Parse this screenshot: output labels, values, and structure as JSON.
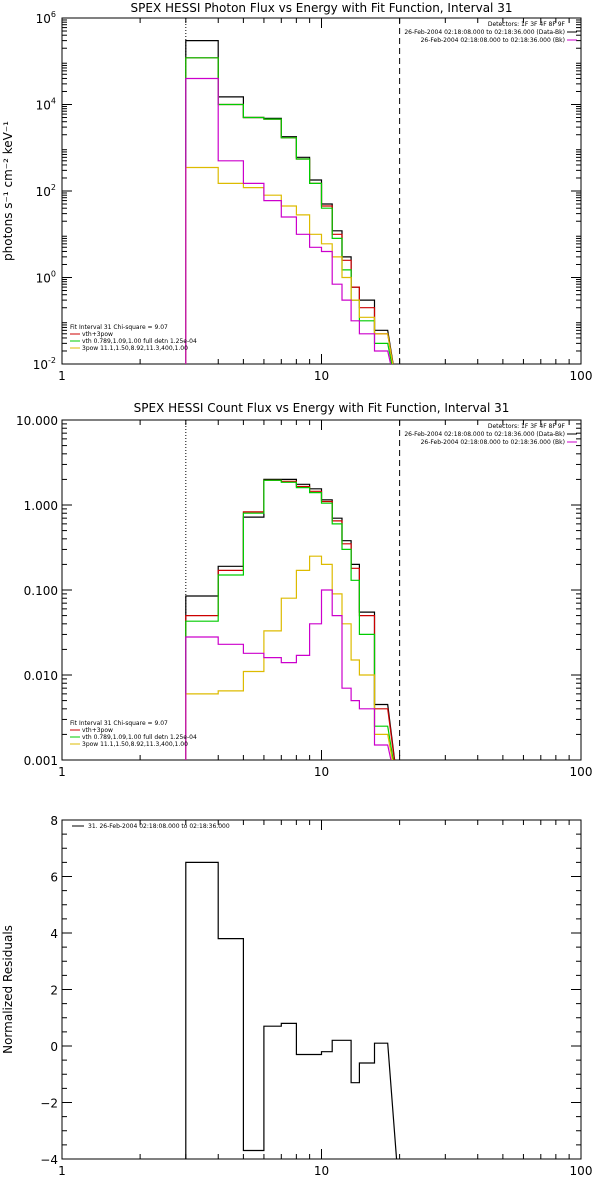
{
  "chart_data": [
    {
      "type": "line",
      "title": "SPEX HESSI Photon Flux vs Energy with Fit Function, Interval 31",
      "ylabel": "photons s⁻¹ cm⁻² keV⁻¹",
      "xscale": "log",
      "yscale": "log",
      "xlim": [
        1,
        100
      ],
      "ylim": [
        0.01,
        1000000
      ],
      "x_ticks": [
        "1",
        "10",
        "100"
      ],
      "y_ticks": [
        {
          "v": 1000000,
          "b": "10",
          "e": "6"
        },
        {
          "v": 10000,
          "b": "10",
          "e": "4"
        },
        {
          "v": 100,
          "b": "10",
          "e": "2"
        },
        {
          "v": 1,
          "b": "10",
          "e": "0"
        },
        {
          "v": 0.01,
          "b": "10",
          "e": "-2"
        }
      ],
      "legend_top": [
        "Detectors: 1F 3F 4F 8F 9F",
        "26-Feb-2004 02:18:08.000 to 02:18:36.000 (Data-Bk)",
        "26-Feb-2004 02:18:08.000 to 02:18:36.000 (Bk)"
      ],
      "legend_top_colors": [
        "",
        "#000000",
        "#cc00cc"
      ],
      "legend_bottom": [
        "Fit Interval 31    Chi-square = 9.07",
        "vth+3pow",
        "vth 0.789,1.09,1.00  full detn 1.25e-04",
        "3pow 11.1,1.50,8.92,11.3,400,1.00"
      ],
      "legend_bottom_colors": [
        "",
        "#cc0000",
        "#00cc00",
        "#ddbb00"
      ],
      "vlines": [
        {
          "x": 3,
          "style": "dotted"
        },
        {
          "x": 20,
          "style": "dashed"
        }
      ],
      "edges": [
        3,
        4,
        5,
        6,
        7,
        8,
        9,
        10,
        11,
        12,
        13,
        14,
        16,
        18,
        20
      ],
      "series": [
        {
          "name": "Data-Bk",
          "color": "#000000",
          "values": [
            300000,
            15000,
            5000,
            4800,
            1800,
            600,
            180,
            50,
            12,
            3,
            0.6,
            0.3,
            0.06
          ]
        },
        {
          "name": "vth+3pow",
          "color": "#cc0000",
          "values": [
            120000,
            10000,
            5000,
            4600,
            1700,
            550,
            150,
            45,
            10,
            2.5,
            0.6,
            0.2,
            0.05
          ]
        },
        {
          "name": "vth",
          "color": "#00cc00",
          "values": [
            120000,
            10000,
            5000,
            4600,
            1700,
            550,
            150,
            40,
            8,
            1.5,
            0.3,
            0.1,
            0.03
          ]
        },
        {
          "name": "3pow",
          "color": "#ddbb00",
          "values": [
            350,
            150,
            120,
            80,
            45,
            28,
            10,
            6,
            3,
            1,
            0.3,
            0.12,
            0.05
          ]
        },
        {
          "name": "Bk",
          "color": "#cc00cc",
          "values": [
            40000,
            500,
            150,
            60,
            25,
            10,
            5,
            4,
            0.7,
            0.3,
            0.1,
            0.05,
            0.02
          ]
        }
      ]
    },
    {
      "type": "line",
      "title": "SPEX HESSI Count Flux vs Energy with Fit Function, Interval 31",
      "ylabel": "",
      "xscale": "log",
      "yscale": "log",
      "xlim": [
        1,
        100
      ],
      "ylim": [
        0.001,
        10
      ],
      "x_ticks": [
        "1",
        "10",
        "100"
      ],
      "y_ticks": [
        {
          "v": 10,
          "t": "10.000"
        },
        {
          "v": 1,
          "t": "1.000"
        },
        {
          "v": 0.1,
          "t": "0.100"
        },
        {
          "v": 0.01,
          "t": "0.010"
        },
        {
          "v": 0.001,
          "t": "0.001"
        }
      ],
      "legend_top": [
        "Detectors: 1F 3F 4F 8F 9F",
        "26-Feb-2004 02:18:08.000 to 02:18:36.000 (Data-Bk)",
        "26-Feb-2004 02:18:08.000 to 02:18:36.000 (Bk)"
      ],
      "legend_top_colors": [
        "",
        "#000000",
        "#cc00cc"
      ],
      "legend_bottom": [
        "Fit Interval 31    Chi-square = 9.07",
        "vth+3pow",
        "vth 0.789,1.09,1.00  full detn 1.25e-04",
        "3pow 11.1,1.50,8.92,11.3,400,1.00"
      ],
      "legend_bottom_colors": [
        "",
        "#cc0000",
        "#00cc00",
        "#ddbb00"
      ],
      "vlines": [
        {
          "x": 3,
          "style": "dotted"
        },
        {
          "x": 20,
          "style": "dashed"
        }
      ],
      "edges": [
        3,
        4,
        5,
        6,
        7,
        8,
        9,
        10,
        11,
        12,
        13,
        14,
        16,
        18,
        20
      ],
      "series": [
        {
          "name": "Data-Bk",
          "color": "#000000",
          "values": [
            0.085,
            0.19,
            0.72,
            2.0,
            2.0,
            1.75,
            1.55,
            1.15,
            0.7,
            0.38,
            0.2,
            0.055,
            0.0045
          ]
        },
        {
          "name": "vth+3pow",
          "color": "#cc0000",
          "values": [
            0.05,
            0.17,
            0.83,
            1.95,
            1.9,
            1.65,
            1.45,
            1.1,
            0.65,
            0.35,
            0.18,
            0.05,
            0.004
          ]
        },
        {
          "name": "vth",
          "color": "#00cc00",
          "values": [
            0.043,
            0.15,
            0.8,
            1.95,
            1.85,
            1.6,
            1.4,
            1.05,
            0.6,
            0.3,
            0.13,
            0.03,
            0.0025
          ]
        },
        {
          "name": "3pow",
          "color": "#ddbb00",
          "values": [
            0.006,
            0.0065,
            0.011,
            0.033,
            0.08,
            0.17,
            0.25,
            0.2,
            0.09,
            0.04,
            0.015,
            0.01,
            0.002
          ]
        },
        {
          "name": "Bk",
          "color": "#cc00cc",
          "values": [
            0.028,
            0.023,
            0.018,
            0.016,
            0.014,
            0.017,
            0.04,
            0.1,
            0.05,
            0.007,
            0.005,
            0.004,
            0.0015
          ]
        }
      ]
    },
    {
      "type": "line",
      "title": "",
      "ylabel": "Normalized Residuals",
      "xscale": "log",
      "yscale": "linear",
      "xlim": [
        1,
        100
      ],
      "ylim": [
        -4,
        8
      ],
      "x_ticks": [
        "1",
        "10",
        "100"
      ],
      "y_ticks": [
        {
          "v": 8,
          "t": "8"
        },
        {
          "v": 6,
          "t": "6"
        },
        {
          "v": 4,
          "t": "4"
        },
        {
          "v": 2,
          "t": "2"
        },
        {
          "v": 0,
          "t": "0"
        },
        {
          "v": -2,
          "t": "−2"
        },
        {
          "v": -4,
          "t": "−4"
        }
      ],
      "legend_top": [
        "31. 26-Feb-2004 02:18:08.000 to 02:18:36.000"
      ],
      "legend_top_colors": [
        "#000000"
      ],
      "legend_bottom": [],
      "legend_bottom_colors": [],
      "vlines": [],
      "edges": [
        3,
        4,
        5,
        6,
        7,
        8,
        9,
        10,
        11,
        12,
        13,
        14,
        16,
        18,
        20
      ],
      "series": [
        {
          "name": "31",
          "color": "#000000",
          "values": [
            6.5,
            3.8,
            -3.7,
            0.7,
            0.8,
            -0.3,
            -0.3,
            -0.2,
            0.2,
            0.2,
            -1.3,
            -0.6,
            0.1
          ]
        }
      ]
    }
  ]
}
